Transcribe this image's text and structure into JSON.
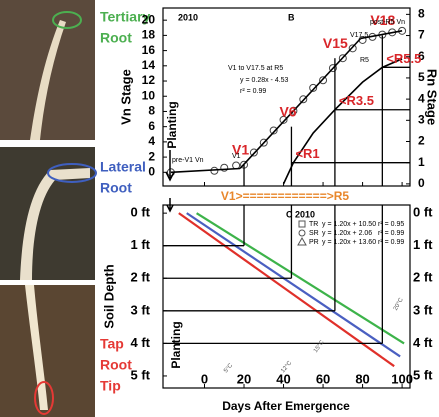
{
  "photo_labels": [
    {
      "lines": [
        "Tertiary",
        "Root"
      ],
      "color": "#4caf50"
    },
    {
      "lines": [
        "Lateral",
        "Root"
      ],
      "color": "#3f5fbf"
    },
    {
      "lines": [
        "Tap",
        "Root",
        "Tip"
      ],
      "color": "#e53935"
    }
  ],
  "bridge_label": {
    "text": "V1>============>R5",
    "color": "#e8862a"
  },
  "chart_data": [
    {
      "type": "line",
      "panel": "B",
      "year": "2010",
      "y_label": "Vn Stage",
      "y2_label": "Rn Stage",
      "xlim": [
        -21,
        104
      ],
      "xticks": [
        0,
        20,
        40,
        60,
        80,
        100
      ],
      "ylim": [
        -1.8,
        21.6
      ],
      "yticks": [
        0,
        2,
        4,
        6,
        8,
        10,
        12,
        14,
        16,
        18,
        20
      ],
      "y2lim": [
        -0.1,
        8.3
      ],
      "y2ticks": [
        0,
        1,
        2,
        3,
        4,
        5,
        6,
        7,
        8
      ],
      "series": [
        {
          "mode": "markers",
          "color": "#444444",
          "x": [
            -17,
            5,
            10,
            16,
            20,
            25,
            30,
            35,
            40,
            45,
            50,
            55,
            60,
            65,
            70,
            75,
            80,
            85,
            90,
            95,
            100
          ],
          "values": [
            0,
            0.2,
            0.6,
            0.9,
            1,
            2.6,
            3.9,
            5.5,
            6.9,
            8.1,
            9.6,
            11.1,
            12.1,
            13.7,
            15,
            16.3,
            17.4,
            17.8,
            18.1,
            18.4,
            18.6
          ]
        },
        {
          "name": "pre-V1 Vn",
          "mode": "line",
          "color": "#000000",
          "x": [
            -17,
            18
          ],
          "values": [
            0,
            0.5
          ]
        },
        {
          "name": "V1 to V17.5 at R5",
          "mode": "line",
          "color": "#000000",
          "x": [
            18,
            79
          ],
          "values": [
            0.51,
            17.59
          ]
        },
        {
          "name": "post-R5 Vn",
          "mode": "line",
          "color": "#000000",
          "x": [
            79,
            100
          ],
          "values": [
            17.6,
            18.6
          ]
        },
        {
          "name": "R5",
          "mode": "line",
          "axis": "y2",
          "color": "#000000",
          "x": [
            40,
            45,
            55,
            66,
            80,
            90,
            100
          ],
          "values": [
            0,
            1,
            2.4,
            3.5,
            4.8,
            5.5,
            5.9
          ]
        }
      ],
      "stage_markers": [
        {
          "label": "V1",
          "x": 20,
          "y": 1
        },
        {
          "label": "V6",
          "x": 44,
          "y": 6
        },
        {
          "label": "V15",
          "x": 66,
          "y": 15
        },
        {
          "label": "V18",
          "x": 90,
          "y": 18
        }
      ],
      "r_markers": [
        {
          "label": "<R1",
          "x": 44,
          "y": 1
        },
        {
          "label": "<R3.5",
          "x": 66,
          "y": 3.5
        },
        {
          "label": "<R5.5",
          "x": 90,
          "y": 5.5
        }
      ],
      "annotations": [
        "Planting",
        "y = 0.28x - 4.53",
        "r² = 0.99",
        "V17.5",
        "V1"
      ]
    },
    {
      "type": "line",
      "panel": "C",
      "year": "2010",
      "y_label": "Soil Depth",
      "x_label": "Days After Emergence",
      "xlim": [
        -21,
        104
      ],
      "xticks": [
        0,
        20,
        40,
        60,
        80,
        100
      ],
      "ylim": [
        -0.25,
        5.37
      ],
      "inverted": true,
      "yticks": [
        {
          "value": 0,
          "label": "0 ft"
        },
        {
          "value": 1,
          "label": "1 ft"
        },
        {
          "value": 2,
          "label": "2 ft"
        },
        {
          "value": 3,
          "label": "3 ft"
        },
        {
          "value": 4,
          "label": "4 ft"
        },
        {
          "value": 5,
          "label": "5 ft"
        }
      ],
      "series": [
        {
          "name": "TR",
          "marker": "square",
          "color": "#3db34a",
          "equation": "y = 1.20x + 10.50",
          "r2": "r² = 0.95",
          "x": [
            -4,
            101
          ],
          "values": [
            0,
            4.0
          ]
        },
        {
          "name": "SR",
          "marker": "circle",
          "color": "#4a5fc1",
          "equation": "y = 1.20x + 2.06",
          "r2": "r² = 0.99",
          "x": [
            -9,
            99
          ],
          "values": [
            0,
            4.4
          ]
        },
        {
          "name": "PR",
          "marker": "triangle",
          "color": "#e0302a",
          "equation": "y = 1.20x + 13.60",
          "r2": "r² = 0.99",
          "x": [
            -13,
            96
          ],
          "values": [
            0,
            4.7
          ]
        }
      ],
      "depth_guides": [
        {
          "x": 20,
          "y": 1
        },
        {
          "x": 44,
          "y": 2
        },
        {
          "x": 66,
          "y": 3
        },
        {
          "x": 90,
          "y": 4
        }
      ],
      "isotherm_labels": [
        "20°C",
        "15°C",
        "12°C",
        "5°C"
      ],
      "annotations": [
        "Planting"
      ]
    }
  ]
}
